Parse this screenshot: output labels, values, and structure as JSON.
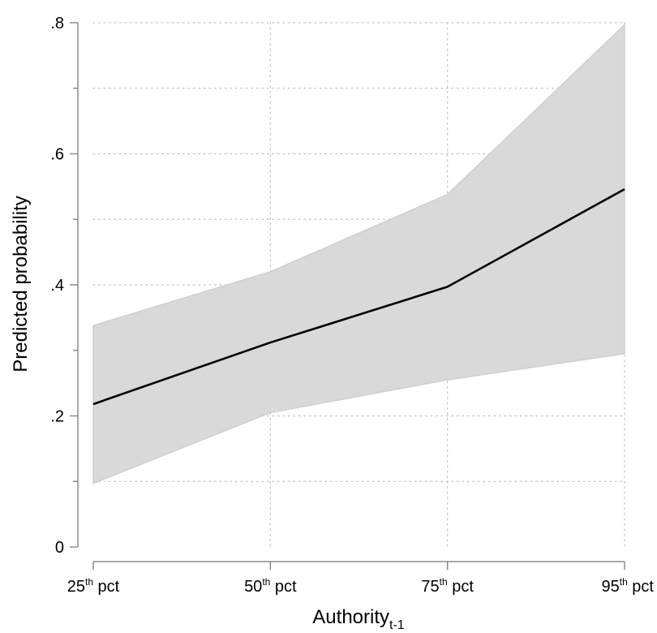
{
  "chart_data": {
    "type": "line",
    "xlabel": "Authority",
    "xlabel_sub": "t-1",
    "ylabel": "Predicted probability",
    "categories": [
      {
        "num": "25",
        "sup": "th",
        "suffix": " pct"
      },
      {
        "num": "50",
        "sup": "th",
        "suffix": " pct"
      },
      {
        "num": "75",
        "sup": "th",
        "suffix": " pct"
      },
      {
        "num": "95",
        "sup": "th",
        "suffix": " pct"
      }
    ],
    "series": [
      {
        "values": [
          0.218,
          0.312,
          0.397,
          0.546
        ]
      }
    ],
    "ci_upper": [
      0.338,
      0.42,
      0.538,
      0.797
    ],
    "ci_lower": [
      0.097,
      0.205,
      0.255,
      0.295
    ],
    "ylim": [
      0,
      0.8
    ],
    "yticks": [
      0,
      0.2,
      0.4,
      0.6,
      0.8
    ],
    "ytick_labels": [
      "0",
      ".2",
      ".4",
      ".6",
      ".8"
    ],
    "ygrid": [
      0.1,
      0.3,
      0.5,
      0.7
    ],
    "grid": true,
    "colors": {
      "line": "#000000",
      "band": "#d9d9d9",
      "band_edge": "#cfcfcf",
      "grid": "#bdbdbd",
      "axis": "#8c8c8c"
    }
  }
}
